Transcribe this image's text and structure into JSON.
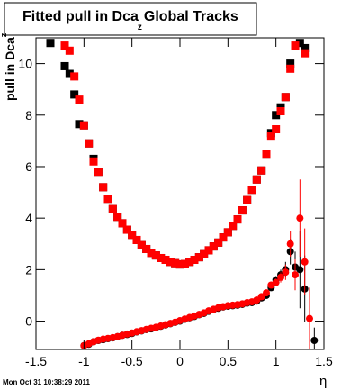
{
  "chart_data": {
    "type": "scatter",
    "title": "Fitted pull in Dca",
    "title_subscript": "z",
    "title_rest": "Global Tracks",
    "y_label": "pull in Dca",
    "y_label_subscript": "z",
    "x_label": "η",
    "footer": "Mon Oct 31 10:38:29 2011",
    "x": [
      -1.35,
      -1.3,
      -1.25,
      -1.2,
      -1.15,
      -1.1,
      -1.05,
      -1.0,
      -0.95,
      -0.9,
      -0.85,
      -0.8,
      -0.75,
      -0.7,
      -0.65,
      -0.6,
      -0.55,
      -0.5,
      -0.45,
      -0.4,
      -0.35,
      -0.3,
      -0.25,
      -0.2,
      -0.15,
      -0.1,
      -0.05,
      0,
      0.05,
      0.1,
      0.15,
      0.2,
      0.25,
      0.3,
      0.35,
      0.4,
      0.45,
      0.5,
      0.55,
      0.6,
      0.65,
      0.7,
      0.75,
      0.8,
      0.85,
      0.9,
      0.95,
      1.0,
      1.05,
      1.1,
      1.15,
      1.2,
      1.25,
      1.3,
      1.35,
      1.4
    ],
    "series": [
      {
        "color": "#000000",
        "marker": "square",
        "values": [
          10.8,
          null,
          null,
          9.9,
          9.6,
          8.8,
          7.65,
          7.6,
          6.9,
          6.3,
          5.8,
          5.2,
          4.75,
          4.35,
          4.05,
          3.8,
          3.55,
          3.35,
          3.15,
          2.95,
          2.8,
          2.65,
          2.55,
          2.45,
          2.38,
          2.3,
          2.25,
          2.2,
          2.22,
          2.3,
          2.38,
          2.48,
          2.6,
          2.75,
          2.9,
          3.05,
          3.25,
          3.45,
          3.7,
          3.95,
          4.3,
          4.7,
          5.1,
          5.5,
          5.85,
          6.5,
          7.3,
          8.0,
          8.3,
          8.7,
          10.0,
          null,
          10.8,
          10.6,
          null,
          null
        ]
      },
      {
        "color": "#ff0000",
        "marker": "square",
        "values": [
          null,
          null,
          null,
          10.7,
          10.5,
          9.5,
          8.6,
          7.6,
          6.9,
          6.2,
          5.8,
          5.2,
          4.75,
          4.35,
          4.05,
          3.8,
          3.55,
          3.35,
          3.15,
          2.95,
          2.8,
          2.65,
          2.55,
          2.45,
          2.38,
          2.3,
          2.25,
          2.2,
          2.22,
          2.3,
          2.38,
          2.48,
          2.6,
          2.75,
          2.9,
          3.05,
          3.25,
          3.45,
          3.7,
          3.95,
          4.3,
          4.7,
          5.1,
          5.5,
          5.85,
          6.5,
          7.2,
          7.45,
          8.15,
          8.7,
          9.8,
          10.7,
          null,
          10.4,
          null,
          null
        ]
      },
      {
        "color": "#000000",
        "marker": "circle",
        "values": [
          null,
          null,
          null,
          null,
          null,
          null,
          null,
          -0.95,
          -0.9,
          -0.8,
          -0.75,
          -0.72,
          -0.68,
          -0.65,
          -0.6,
          -0.55,
          -0.52,
          -0.48,
          -0.42,
          -0.38,
          -0.33,
          -0.3,
          -0.25,
          -0.2,
          -0.15,
          -0.1,
          -0.05,
          0,
          0.07,
          0.13,
          0.18,
          0.25,
          0.3,
          0.38,
          0.45,
          0.5,
          0.55,
          0.58,
          0.6,
          0.62,
          0.65,
          0.7,
          0.72,
          0.78,
          0.9,
          1.0,
          1.3,
          1.6,
          1.8,
          2.0,
          2.7,
          2.1,
          2.0,
          1.25,
          null,
          -0.75
        ],
        "errors": [
          null,
          null,
          null,
          null,
          null,
          null,
          null,
          0.05,
          0.05,
          0.05,
          0.05,
          0.05,
          0.05,
          0.05,
          0.05,
          0.05,
          0.05,
          0.05,
          0.05,
          0.05,
          0.05,
          0.05,
          0.05,
          0.05,
          0.05,
          0.05,
          0.05,
          0.05,
          0.05,
          0.05,
          0.05,
          0.05,
          0.05,
          0.05,
          0.05,
          0.05,
          0.05,
          0.05,
          0.05,
          0.05,
          0.05,
          0.05,
          0.05,
          0.05,
          0.05,
          0.1,
          0.1,
          0.15,
          0.2,
          0.3,
          0.5,
          0.6,
          1.5,
          1.3,
          null,
          0.5
        ]
      },
      {
        "color": "#ff0000",
        "marker": "circle",
        "values": [
          null,
          null,
          null,
          null,
          null,
          null,
          null,
          -0.95,
          -0.88,
          -0.8,
          -0.74,
          -0.7,
          -0.67,
          -0.64,
          -0.6,
          -0.55,
          -0.5,
          -0.46,
          -0.41,
          -0.37,
          -0.32,
          -0.28,
          -0.24,
          -0.19,
          -0.14,
          -0.09,
          -0.04,
          0.02,
          0.08,
          0.14,
          0.2,
          0.26,
          0.32,
          0.4,
          0.46,
          0.52,
          0.56,
          0.6,
          0.62,
          0.64,
          0.67,
          0.72,
          0.75,
          0.82,
          0.95,
          1.1,
          1.4,
          1.5,
          1.7,
          1.9,
          3.0,
          1.8,
          4.0,
          2.3,
          0.1,
          null
        ],
        "errors": [
          null,
          null,
          null,
          null,
          null,
          null,
          null,
          0.05,
          0.05,
          0.05,
          0.05,
          0.05,
          0.05,
          0.05,
          0.05,
          0.05,
          0.05,
          0.05,
          0.05,
          0.05,
          0.05,
          0.05,
          0.05,
          0.05,
          0.05,
          0.05,
          0.05,
          0.05,
          0.05,
          0.05,
          0.05,
          0.05,
          0.05,
          0.05,
          0.05,
          0.05,
          0.05,
          0.05,
          0.05,
          0.05,
          0.05,
          0.05,
          0.05,
          0.05,
          0.05,
          0.1,
          0.1,
          0.15,
          0.2,
          0.3,
          0.5,
          0.6,
          1.5,
          1.3,
          1.2,
          null
        ]
      }
    ],
    "xlim": [
      -1.5,
      1.5
    ],
    "xticks": [
      -1.5,
      -1,
      -0.5,
      0,
      0.5,
      1,
      1.5
    ],
    "ylim": [
      -1.1,
      11
    ],
    "yticks": [
      0,
      2,
      4,
      6,
      8,
      10
    ],
    "grid": false
  }
}
